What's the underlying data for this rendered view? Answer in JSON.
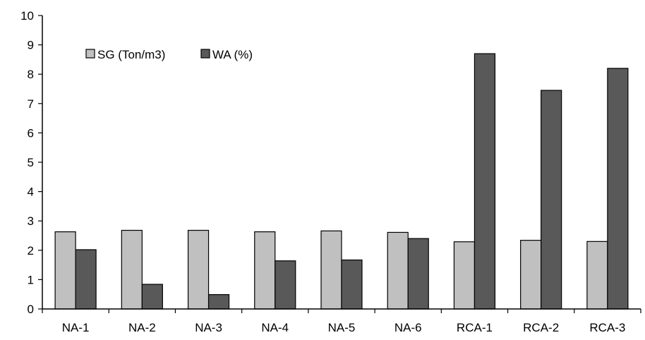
{
  "chart_data": {
    "type": "bar",
    "title": "",
    "xlabel": "",
    "ylabel": "",
    "categories": [
      "NA-1",
      "NA-2",
      "NA-3",
      "NA-4",
      "NA-5",
      "NA-6",
      "RCA-1",
      "RCA-2",
      "RCA-3"
    ],
    "series": [
      {
        "name": "SG (Ton/m3)",
        "color": "#c0c0c0",
        "values": [
          2.63,
          2.68,
          2.68,
          2.63,
          2.66,
          2.61,
          2.29,
          2.34,
          2.3
        ]
      },
      {
        "name": "WA (%)",
        "color": "#595959",
        "values": [
          2.02,
          0.84,
          0.49,
          1.64,
          1.67,
          2.4,
          8.7,
          7.45,
          8.2
        ]
      }
    ],
    "ylim": [
      0,
      10
    ],
    "yticks": [
      0,
      1,
      2,
      3,
      4,
      5,
      6,
      7,
      8,
      9,
      10
    ],
    "grid": false,
    "legend_position": "top-left"
  }
}
